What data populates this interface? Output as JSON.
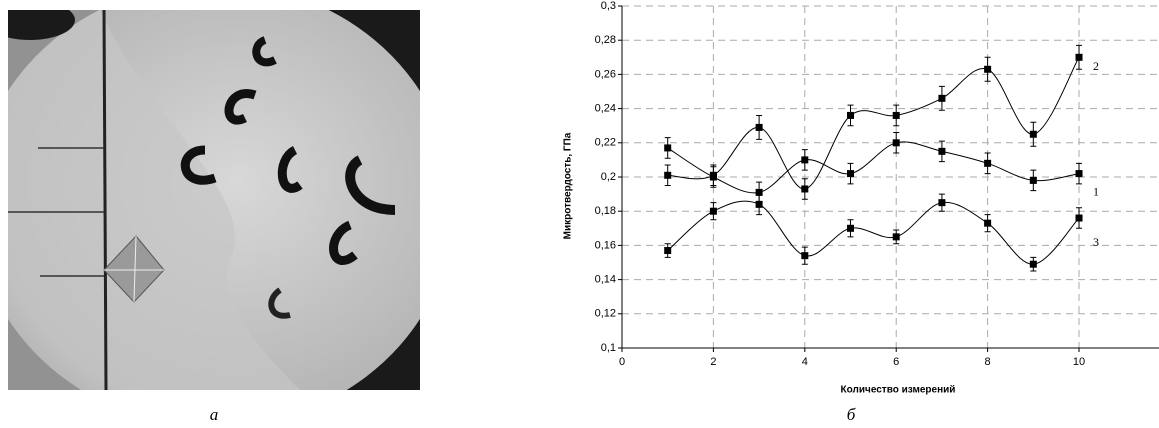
{
  "captions": [
    "а",
    "б"
  ],
  "chart_data": {
    "type": "line",
    "x_label": "Количество измерений",
    "y_label": "Микротвердость, ГПа",
    "x": [
      1,
      2,
      3,
      4,
      5,
      6,
      7,
      8,
      9,
      10
    ],
    "series": [
      {
        "name": "1",
        "color": "#000000",
        "values": [
          0.217,
          0.2,
          0.191,
          0.21,
          0.202,
          0.22,
          0.215,
          0.208,
          0.198,
          0.202
        ],
        "errors": [
          0.006,
          0.006,
          0.006,
          0.006,
          0.006,
          0.006,
          0.006,
          0.006,
          0.006,
          0.006
        ]
      },
      {
        "name": "2",
        "color": "#000000",
        "values": [
          0.201,
          0.201,
          0.229,
          0.193,
          0.236,
          0.236,
          0.246,
          0.263,
          0.225,
          0.27
        ],
        "errors": [
          0.006,
          0.006,
          0.007,
          0.006,
          0.006,
          0.006,
          0.007,
          0.007,
          0.007,
          0.007
        ]
      },
      {
        "name": "3",
        "color": "#000000",
        "values": [
          0.157,
          0.18,
          0.184,
          0.154,
          0.17,
          0.165,
          0.185,
          0.173,
          0.149,
          0.176
        ],
        "errors": [
          0.004,
          0.005,
          0.006,
          0.005,
          0.005,
          0.004,
          0.005,
          0.005,
          0.004,
          0.006
        ]
      }
    ],
    "xlim": [
      0,
      11.75
    ],
    "xticks": [
      0,
      2,
      4,
      6,
      8,
      10
    ],
    "ylim": [
      0.1,
      0.3
    ],
    "yticks": [
      {
        "value": 0.1,
        "label": "0,1"
      },
      {
        "value": 0.12,
        "label": "0,12"
      },
      {
        "value": 0.14,
        "label": "0,14"
      },
      {
        "value": 0.16,
        "label": "0,16"
      },
      {
        "value": 0.18,
        "label": "0,18"
      },
      {
        "value": 0.2,
        "label": "0,2"
      },
      {
        "value": 0.22,
        "label": "0,22"
      },
      {
        "value": 0.24,
        "label": "0,24"
      },
      {
        "value": 0.26,
        "label": "0,26"
      },
      {
        "value": 0.28,
        "label": "0,28"
      },
      {
        "value": 0.3,
        "label": "0,3"
      }
    ],
    "grid": true
  }
}
